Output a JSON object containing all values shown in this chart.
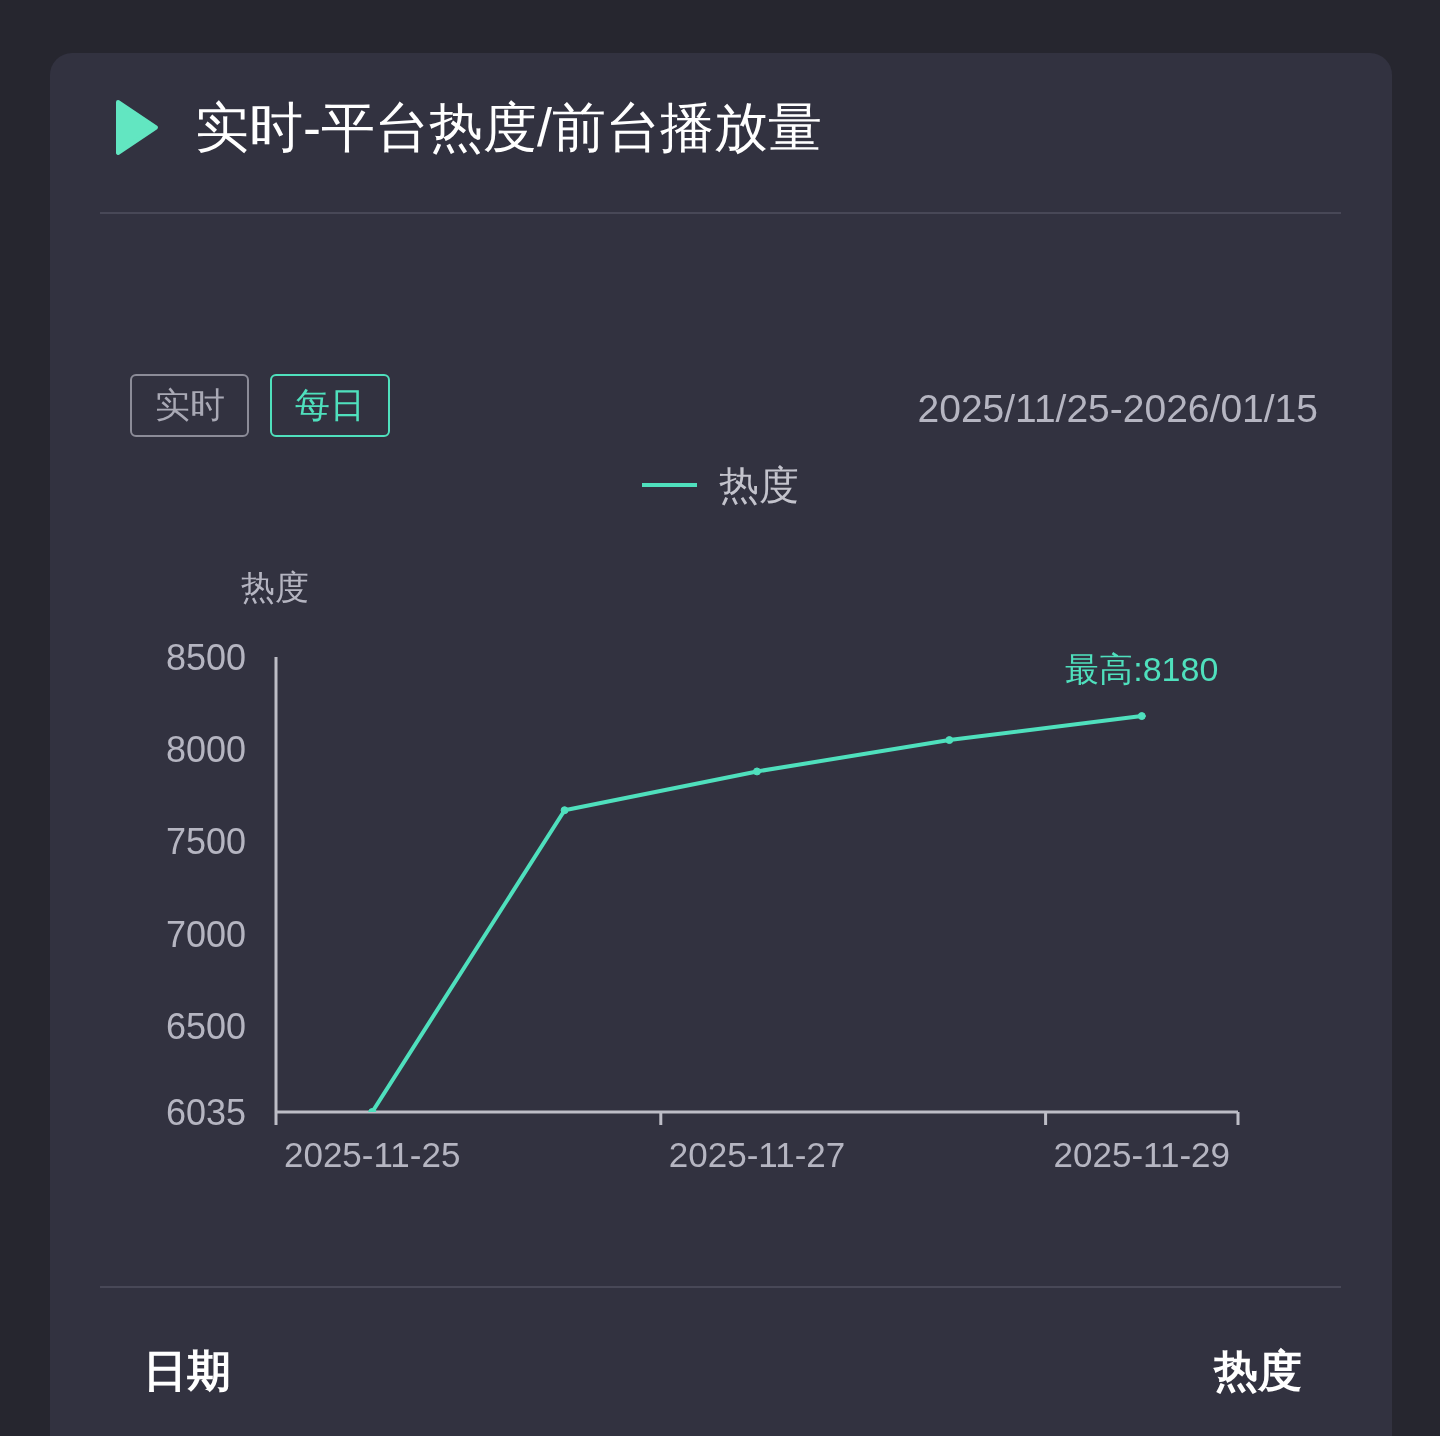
{
  "chart_data": {
    "type": "line",
    "title": "实时-平台热度/前台播放量",
    "subtitle": "2025/11/25-2026/01/15",
    "ylabel": "热度",
    "categories": [
      "2025-11-25",
      null,
      "2025-11-27",
      null,
      "2025-11-29"
    ],
    "series": [
      {
        "name": "热度",
        "color": "#4fe0bd",
        "values": [
          6035,
          7670,
          7880,
          8050,
          8180
        ]
      }
    ],
    "ylim": [
      6035,
      8500
    ],
    "yticks": [
      6035,
      6500,
      7000,
      7500,
      8000,
      8500
    ],
    "legend": "top",
    "marker": "circle",
    "line_style": "solid",
    "annotations": [
      {
        "text": "最高:8180",
        "x": "2025-11-29",
        "y": 8180
      },
      "实时",
      "每日",
      "日期",
      "热度"
    ]
  }
}
